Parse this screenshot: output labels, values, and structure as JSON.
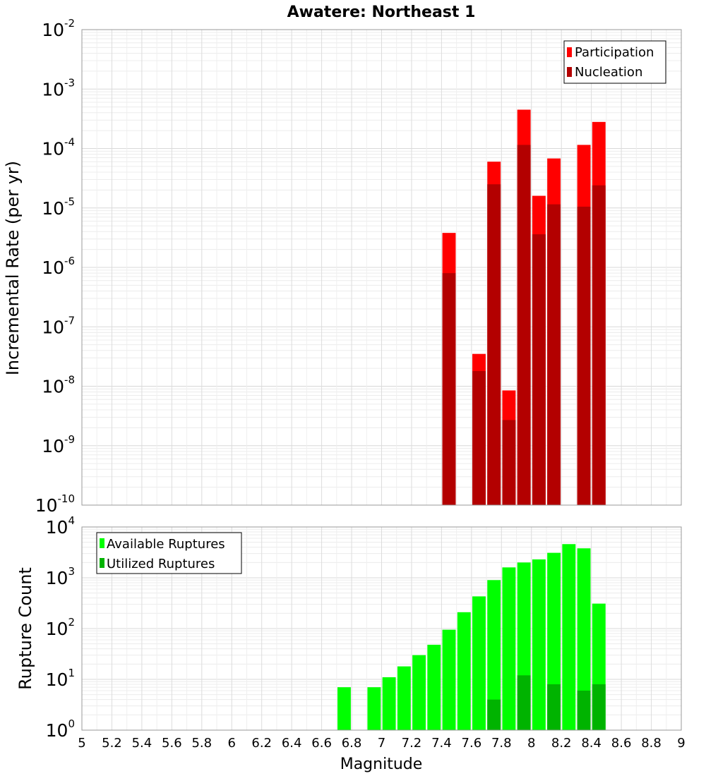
{
  "chart_data": [
    {
      "type": "bar",
      "title": "Awatere: Northeast 1",
      "xlabel": "Magnitude",
      "ylabel": "Incremental Rate (per yr)",
      "yscale": "log",
      "xlim": [
        5,
        9
      ],
      "ylim": [
        1e-10,
        0.01
      ],
      "grid": true,
      "legend_position": "top-right",
      "series": [
        {
          "name": "Participation",
          "color": "#ff0000",
          "points": [
            {
              "x": 7.45,
              "y": 3.8e-06
            },
            {
              "x": 7.65,
              "y": 3.5e-08
            },
            {
              "x": 7.75,
              "y": 6e-05
            },
            {
              "x": 7.85,
              "y": 8.5e-09
            },
            {
              "x": 7.95,
              "y": 0.00045
            },
            {
              "x": 8.05,
              "y": 1.6e-05
            },
            {
              "x": 8.15,
              "y": 6.8e-05
            },
            {
              "x": 8.35,
              "y": 0.000115
            },
            {
              "x": 8.45,
              "y": 0.00028
            }
          ]
        },
        {
          "name": "Nucleation",
          "color": "#b30000",
          "points": [
            {
              "x": 7.45,
              "y": 8e-07
            },
            {
              "x": 7.65,
              "y": 1.8e-08
            },
            {
              "x": 7.75,
              "y": 2.5e-05
            },
            {
              "x": 7.85,
              "y": 2.7e-09
            },
            {
              "x": 7.95,
              "y": 0.000115
            },
            {
              "x": 8.05,
              "y": 3.6e-06
            },
            {
              "x": 8.15,
              "y": 1.15e-05
            },
            {
              "x": 8.35,
              "y": 1.05e-05
            },
            {
              "x": 8.45,
              "y": 2.4e-05
            }
          ]
        }
      ]
    },
    {
      "type": "bar",
      "xlabel": "Magnitude",
      "ylabel": "Rupture Count",
      "yscale": "log",
      "xlim": [
        5,
        9
      ],
      "ylim": [
        1,
        10000
      ],
      "grid": true,
      "legend_position": "top-left",
      "x_ticks": [
        "5",
        "5.2",
        "5.4",
        "5.6",
        "5.8",
        "6",
        "6.2",
        "6.4",
        "6.6",
        "6.8",
        "7",
        "7.2",
        "7.4",
        "7.6",
        "7.8",
        "8",
        "8.2",
        "8.4",
        "8.6",
        "8.8",
        "9"
      ],
      "series": [
        {
          "name": "Available Ruptures",
          "color": "#00ff00",
          "points": [
            {
              "x": 6.75,
              "y": 7
            },
            {
              "x": 6.95,
              "y": 7
            },
            {
              "x": 7.05,
              "y": 11
            },
            {
              "x": 7.15,
              "y": 18
            },
            {
              "x": 7.25,
              "y": 30
            },
            {
              "x": 7.35,
              "y": 48
            },
            {
              "x": 7.45,
              "y": 95
            },
            {
              "x": 7.55,
              "y": 210
            },
            {
              "x": 7.65,
              "y": 430
            },
            {
              "x": 7.75,
              "y": 900
            },
            {
              "x": 7.85,
              "y": 1600
            },
            {
              "x": 7.95,
              "y": 2000
            },
            {
              "x": 8.05,
              "y": 2300
            },
            {
              "x": 8.15,
              "y": 3100
            },
            {
              "x": 8.25,
              "y": 4600
            },
            {
              "x": 8.35,
              "y": 3800
            },
            {
              "x": 8.45,
              "y": 310
            }
          ]
        },
        {
          "name": "Utilized Ruptures",
          "color": "#00b300",
          "points": [
            {
              "x": 7.45,
              "y": 1
            },
            {
              "x": 7.65,
              "y": 1
            },
            {
              "x": 7.75,
              "y": 4
            },
            {
              "x": 7.85,
              "y": 1
            },
            {
              "x": 7.95,
              "y": 12
            },
            {
              "x": 8.05,
              "y": 1
            },
            {
              "x": 8.15,
              "y": 8
            },
            {
              "x": 8.35,
              "y": 6
            },
            {
              "x": 8.45,
              "y": 8
            }
          ]
        }
      ]
    }
  ]
}
